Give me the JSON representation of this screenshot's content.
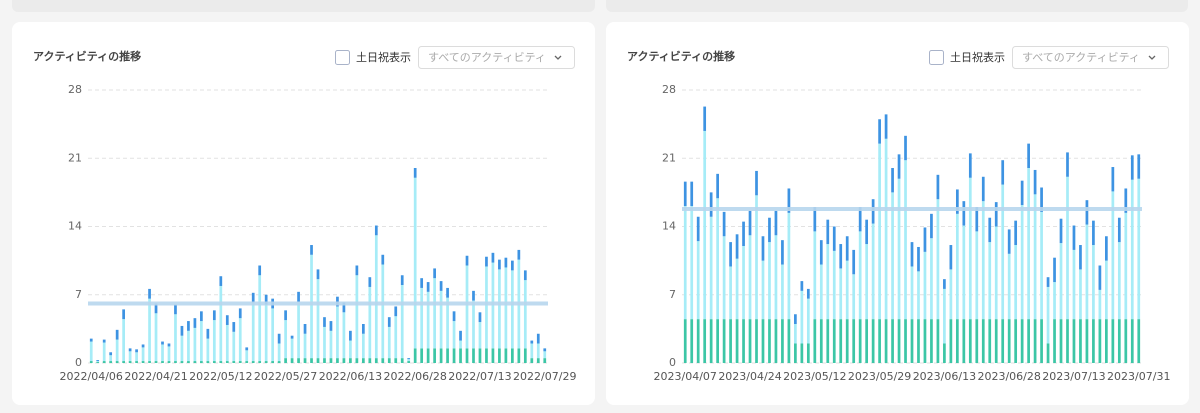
{
  "chart_data": [
    {
      "type": "bar",
      "stacked": true,
      "title": "アクティビティの推移",
      "checkbox_label": "土日祝表示",
      "dropdown_text": "すべてのアクティビティ",
      "categories": [
        "2022/04/06",
        null,
        null,
        null,
        null,
        null,
        null,
        null,
        null,
        null,
        "2022/04/21",
        null,
        null,
        null,
        null,
        null,
        null,
        null,
        null,
        null,
        "2022/05/12",
        null,
        null,
        null,
        null,
        null,
        null,
        null,
        null,
        null,
        "2022/05/27",
        null,
        null,
        null,
        null,
        null,
        null,
        null,
        null,
        null,
        "2022/06/13",
        null,
        null,
        null,
        null,
        null,
        null,
        null,
        null,
        null,
        "2022/06/28",
        null,
        null,
        null,
        null,
        null,
        null,
        null,
        null,
        null,
        "2022/07/13",
        null,
        null,
        null,
        null,
        null,
        null,
        null,
        null,
        null,
        "2022/07/29"
      ],
      "series": [
        {
          "color": "#3cc6a6",
          "values": [
            0.2,
            0.1,
            0.2,
            0.2,
            0.2,
            0.2,
            0.2,
            0.2,
            0.2,
            0.2,
            0.2,
            0.2,
            0.2,
            0.2,
            0.2,
            0.2,
            0.2,
            0.2,
            0.2,
            0.2,
            0.2,
            0.2,
            0.2,
            0.2,
            0.2,
            0.2,
            0.2,
            0.2,
            0.2,
            0.2,
            0.5,
            0.5,
            0.5,
            0.5,
            0.5,
            0.5,
            0.5,
            0.5,
            0.5,
            0.5,
            0.5,
            0.5,
            0.5,
            0.5,
            0.5,
            0.5,
            0.5,
            0.5,
            0.5,
            0.2,
            1.5,
            1.5,
            1.5,
            1.5,
            1.5,
            1.5,
            1.5,
            1.5,
            1.5,
            1.5,
            1.5,
            1.5,
            1.5,
            1.5,
            1.5,
            1.5,
            1.5,
            1.5,
            0.5,
            0.5,
            0.5
          ]
        },
        {
          "color": "#a6ecf7",
          "values": [
            2.0,
            0.1,
            1.9,
            0.6,
            2.2,
            4.3,
            1.0,
            0.9,
            1.4,
            6.4,
            4.9,
            1.7,
            1.5,
            4.8,
            2.6,
            3.1,
            3.4,
            4.1,
            2.3,
            4.2,
            7.7,
            3.7,
            3.0,
            4.4,
            1.1,
            6.0,
            8.8,
            5.8,
            5.4,
            1.8,
            3.9,
            2.0,
            5.8,
            2.5,
            10.6,
            8.1,
            3.2,
            2.8,
            5.3,
            4.7,
            1.8,
            8.5,
            2.5,
            7.3,
            12.6,
            9.6,
            3.2,
            4.3,
            7.5,
            0.2,
            17.5,
            6.2,
            5.8,
            7.2,
            5.9,
            5.2,
            2.8,
            0.8,
            8.5,
            4.9,
            2.7,
            8.4,
            8.8,
            8.1,
            8.3,
            8.0,
            9.1,
            7.0,
            1.5,
            1.5,
            0.7
          ]
        },
        {
          "color": "#3d93e2",
          "values": [
            0.3,
            0.1,
            0.3,
            0.3,
            1,
            1,
            0.3,
            0.3,
            0.3,
            1,
            1,
            0.3,
            0.3,
            1,
            1,
            1,
            1,
            1,
            1,
            1,
            1,
            1,
            1,
            1,
            0.3,
            1,
            1,
            1,
            1,
            1,
            1,
            0.3,
            1,
            1,
            1,
            1,
            1,
            1,
            1,
            1,
            1,
            1,
            1,
            1,
            1,
            1,
            1,
            1,
            1,
            0.1,
            1,
            1,
            1,
            1,
            1,
            1,
            1,
            1,
            1,
            1,
            1,
            1,
            1,
            1,
            1,
            1,
            1,
            1,
            0.3,
            1,
            0.3
          ]
        }
      ],
      "average_line": 6.1,
      "average_color": "#b8d6ee",
      "ylim": [
        0,
        28
      ],
      "yticks": [
        0,
        7,
        14,
        21,
        28
      ],
      "grid": true
    },
    {
      "type": "bar",
      "stacked": true,
      "title": "アクティビティの推移",
      "checkbox_label": "土日祝表示",
      "dropdown_text": "すべてのアクティビティ",
      "categories": [
        "2023/04/07",
        null,
        null,
        null,
        null,
        null,
        null,
        null,
        null,
        null,
        "2023/04/24",
        null,
        null,
        null,
        null,
        null,
        null,
        null,
        null,
        null,
        "2023/05/12",
        null,
        null,
        null,
        null,
        null,
        null,
        null,
        null,
        null,
        "2023/05/29",
        null,
        null,
        null,
        null,
        null,
        null,
        null,
        null,
        null,
        "2023/06/13",
        null,
        null,
        null,
        null,
        null,
        null,
        null,
        null,
        null,
        "2023/06/28",
        null,
        null,
        null,
        null,
        null,
        null,
        null,
        null,
        null,
        "2023/07/13",
        null,
        null,
        null,
        null,
        null,
        null,
        null,
        null,
        null,
        "2023/07/31"
      ],
      "series": [
        {
          "color": "#3cc6a6",
          "values": [
            4.5,
            4.5,
            4.5,
            4.5,
            4.5,
            4.5,
            4.5,
            4.5,
            4.5,
            4.5,
            4.5,
            4.5,
            4.5,
            4.5,
            4.5,
            4.5,
            4.5,
            2,
            2,
            2,
            4.5,
            4.5,
            4.5,
            4.5,
            4.5,
            4.5,
            4.5,
            4.5,
            4.5,
            4.5,
            4.5,
            4.5,
            4.5,
            4.5,
            4.5,
            4.5,
            4.5,
            4.5,
            4.5,
            4.5,
            2,
            4.5,
            4.5,
            4.5,
            4.5,
            4.5,
            4.5,
            4.5,
            4.5,
            4.5,
            4.5,
            4.5,
            4.5,
            4.5,
            4.5,
            4.5,
            2,
            4.5,
            4.5,
            4.5,
            4.5,
            4.5,
            4.5,
            4.5,
            4.5,
            4.5,
            4.5,
            4.5,
            4.5,
            4.5,
            4.5
          ]
        },
        {
          "color": "#a6ecf7",
          "values": [
            11.6,
            11.6,
            8.0,
            19.3,
            10.5,
            12.4,
            8.5,
            5.4,
            6.2,
            7.5,
            8.6,
            12.7,
            6.0,
            7.9,
            8.6,
            5.6,
            10.9,
            2.0,
            5.4,
            4.6,
            9.0,
            5.6,
            7.7,
            7.0,
            5.2,
            6.0,
            4.6,
            9.0,
            7.7,
            9.8,
            18.0,
            18.5,
            13.0,
            14.4,
            16.3,
            5.4,
            4.9,
            6.9,
            8.3,
            12.3,
            5.6,
            5.1,
            10.8,
            9.6,
            14.5,
            9.0,
            12.1,
            7.9,
            9.5,
            13.8,
            6.7,
            7.6,
            11.7,
            15.5,
            12.8,
            11.0,
            5.8,
            3.8,
            7.8,
            14.6,
            7.1,
            5.1,
            9.7,
            7.6,
            3.0,
            6.0,
            13.1,
            7.9,
            10.9,
            14.3,
            14.4
          ]
        },
        {
          "color": "#3d93e2",
          "values": [
            2.5,
            2.5,
            2.5,
            2.5,
            2.5,
            2.5,
            2.5,
            2.5,
            2.5,
            2.5,
            2.5,
            2.5,
            2.5,
            2.5,
            2.5,
            2.5,
            2.5,
            1,
            1,
            1,
            2.5,
            2.5,
            2.5,
            2.5,
            2.5,
            2.5,
            2.5,
            2.5,
            2.5,
            2.5,
            2.5,
            2.5,
            2.5,
            2.5,
            2.5,
            2.5,
            2.5,
            2.5,
            2.5,
            2.5,
            1,
            2.5,
            2.5,
            2.5,
            2.5,
            2.5,
            2.5,
            2.5,
            2.5,
            2.5,
            2.5,
            2.5,
            2.5,
            2.5,
            2.5,
            2.5,
            1,
            2.5,
            2.5,
            2.5,
            2.5,
            2.5,
            2.5,
            2.5,
            2.5,
            2.5,
            2.5,
            2.5,
            2.5,
            2.5,
            2.5
          ]
        }
      ],
      "average_line": 15.8,
      "average_color": "#b8d6ee",
      "ylim": [
        0,
        28
      ],
      "yticks": [
        0,
        7,
        14,
        21,
        28
      ],
      "grid": true
    }
  ]
}
